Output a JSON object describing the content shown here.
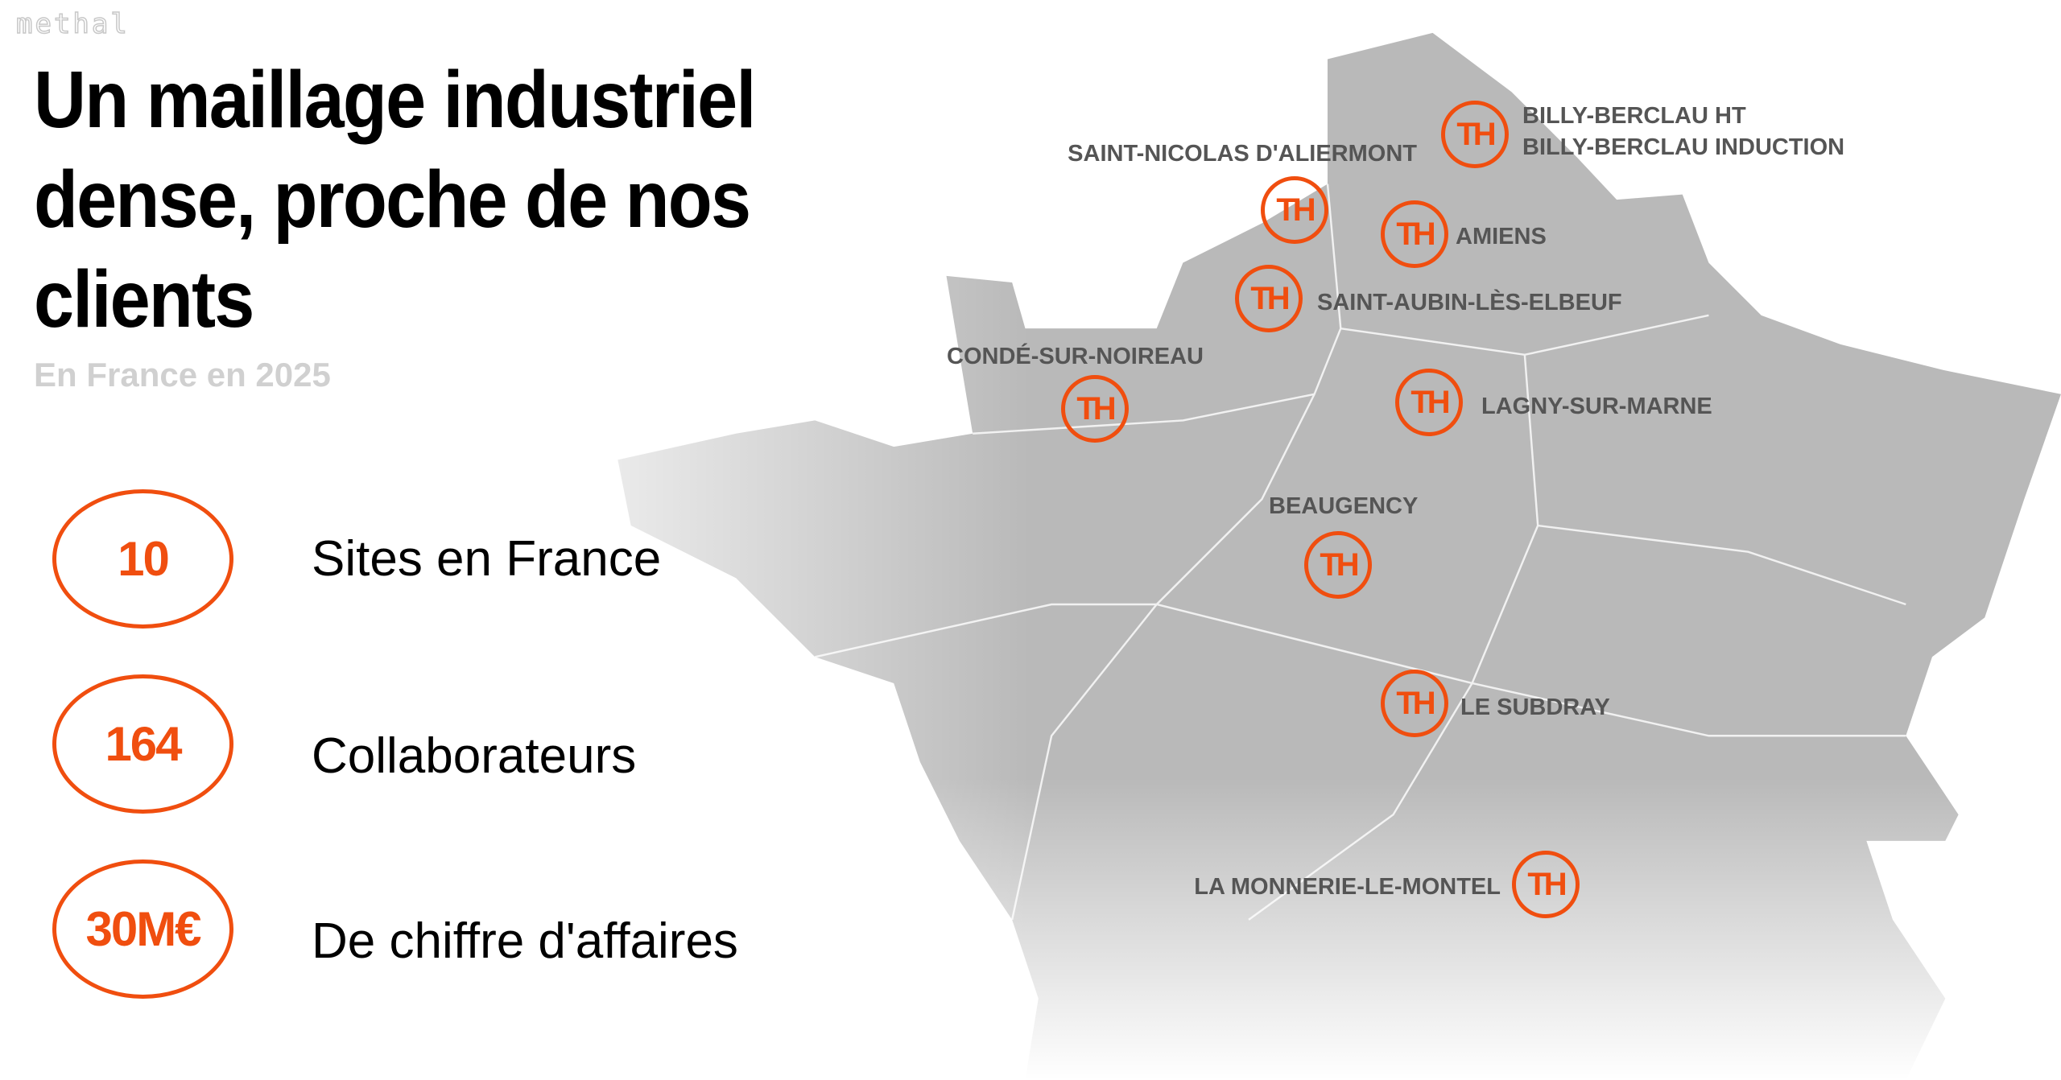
{
  "logo": "methal",
  "title": "Un maillage industriel dense, proche de nos clients",
  "subtitle": "En France en 2025",
  "stats": [
    {
      "value": "10",
      "label": "Sites en France"
    },
    {
      "value": "164",
      "label": "Collaborateurs"
    },
    {
      "value": "30M€",
      "label": "De chiffre d'affaires"
    }
  ],
  "marker_text": "TH",
  "sites": {
    "billy_ht": "BILLY-BERCLAU HT",
    "billy_induction": "BILLY-BERCLAU INDUCTION",
    "saint_nicolas": "SAINT-NICOLAS D'ALIERMONT",
    "amiens": "AMIENS",
    "saint_aubin": "SAINT-AUBIN-LÈS-ELBEUF",
    "conde": "CONDÉ-SUR-NOIREAU",
    "lagny": "LAGNY-SUR-MARNE",
    "beaugency": "BEAUGENCY",
    "le_subdray": "LE SUBDRAY",
    "la_monnerie": "LA MONNERIE-LE-MONTEL"
  },
  "colors": {
    "accent": "#f04e0f",
    "map": "#b9b9b9",
    "label": "#555555"
  }
}
